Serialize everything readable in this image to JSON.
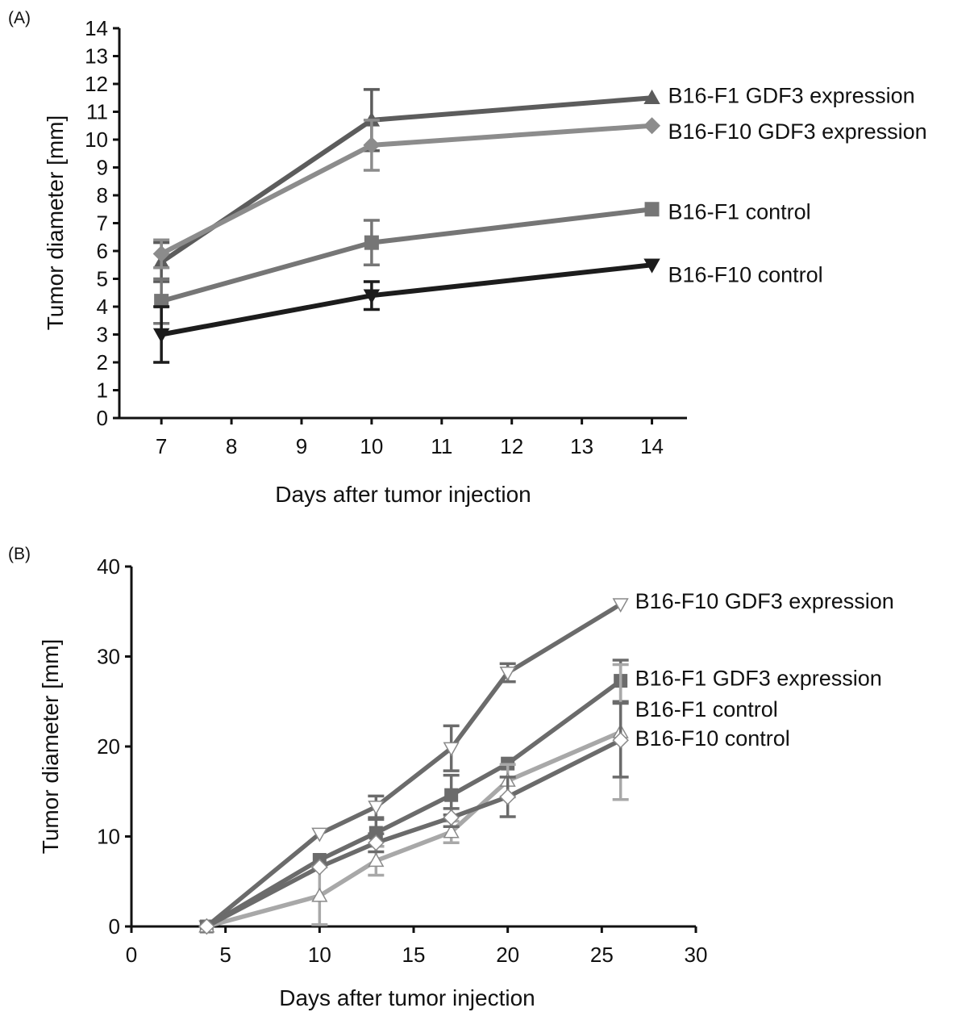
{
  "chart_data": [
    {
      "panel_label": "(A)",
      "type": "line",
      "xlabel": "Days after tumor injection",
      "ylabel": "Tumor diameter [mm]",
      "xlim": [
        6.4,
        14.5
      ],
      "ylim": [
        0,
        14
      ],
      "xticks": [
        7,
        8,
        9,
        10,
        11,
        12,
        13,
        14
      ],
      "yticks": [
        0,
        1,
        2,
        3,
        4,
        5,
        6,
        7,
        8,
        9,
        10,
        11,
        12,
        13,
        14
      ],
      "grid": false,
      "series": [
        {
          "name": "B16-F1 GDF3 expression",
          "marker": "triangle-up",
          "color": "#5c5c5c",
          "x": [
            7,
            10,
            14
          ],
          "y": [
            5.6,
            10.7,
            11.5
          ],
          "err": [
            0.7,
            1.1,
            0
          ]
        },
        {
          "name": "B16-F10 GDF3 expression",
          "marker": "diamond",
          "color": "#8c8c8c",
          "x": [
            7,
            10,
            14
          ],
          "y": [
            5.9,
            9.8,
            10.5
          ],
          "err": [
            0.5,
            0.9,
            0
          ]
        },
        {
          "name": "B16-F1 control",
          "marker": "square",
          "color": "#767676",
          "x": [
            7,
            10,
            14
          ],
          "y": [
            4.2,
            6.3,
            7.5
          ],
          "err": [
            0.8,
            0.8,
            0
          ]
        },
        {
          "name": "B16-F10 control",
          "marker": "triangle-down",
          "color": "#1c1c1c",
          "x": [
            7,
            10,
            14
          ],
          "y": [
            3.0,
            4.4,
            5.5
          ],
          "err": [
            1.0,
            0.5,
            0
          ]
        }
      ]
    },
    {
      "panel_label": "(B)",
      "type": "line",
      "xlabel": "Days after tumor injection",
      "ylabel": "Tumor diameter [mm]",
      "xlim": [
        0,
        30
      ],
      "ylim": [
        0,
        40
      ],
      "xticks": [
        0,
        5,
        10,
        15,
        20,
        25,
        30
      ],
      "yticks": [
        0,
        10,
        20,
        30,
        40
      ],
      "grid": false,
      "series": [
        {
          "name": "B16-F10 GDF3 expression",
          "marker": "open-triangle-down",
          "color": "#6b6b6b",
          "x": [
            4,
            10,
            13,
            17,
            20,
            26
          ],
          "y": [
            0,
            10.3,
            13.3,
            19.8,
            28.2,
            35.8
          ],
          "err": [
            0,
            0,
            1.2,
            2.5,
            1.0,
            0
          ]
        },
        {
          "name": "B16-F1 GDF3 expression",
          "marker": "square",
          "color": "#6b6b6b",
          "x": [
            4,
            10,
            13,
            17,
            20,
            26
          ],
          "y": [
            0,
            7.4,
            10.4,
            14.6,
            18.1,
            27.3
          ],
          "err": [
            0,
            0,
            1.5,
            2.2,
            0,
            2.3
          ]
        },
        {
          "name": "B16-F1 control",
          "marker": "open-triangle-up",
          "color": "#a8a8a8",
          "x": [
            4,
            10,
            13,
            17,
            20,
            26
          ],
          "y": [
            0,
            3.4,
            7.3,
            10.5,
            16.2,
            21.6
          ],
          "err": [
            0,
            3.2,
            1.6,
            1.2,
            1.8,
            7.5
          ]
        },
        {
          "name": "B16-F10 control",
          "marker": "open-diamond",
          "color": "#6b6b6b",
          "x": [
            4,
            10,
            13,
            17,
            20,
            26
          ],
          "y": [
            0,
            6.6,
            9.3,
            12.1,
            14.4,
            20.7
          ],
          "err": [
            0,
            0,
            1.0,
            1.0,
            2.2,
            4.1
          ]
        }
      ]
    }
  ]
}
